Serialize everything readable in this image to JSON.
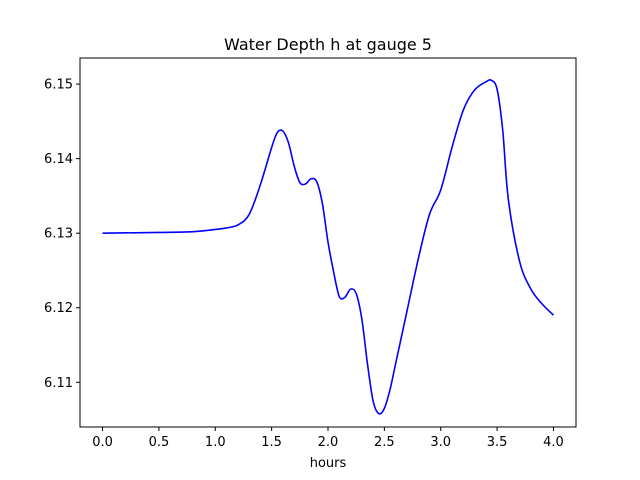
{
  "chart_data": {
    "type": "line",
    "title": "Water Depth h at gauge 5",
    "xlabel": "hours",
    "ylabel": "",
    "xlim": [
      -0.2,
      4.2
    ],
    "ylim": [
      6.104,
      6.1535
    ],
    "grid": false,
    "legend": "none",
    "x_ticks": [
      0.0,
      0.5,
      1.0,
      1.5,
      2.0,
      2.5,
      3.0,
      3.5,
      4.0
    ],
    "x_tick_labels": [
      "0.0",
      "0.5",
      "1.0",
      "1.5",
      "2.0",
      "2.5",
      "3.0",
      "3.5",
      "4.0"
    ],
    "y_ticks": [
      6.11,
      6.12,
      6.13,
      6.14,
      6.15
    ],
    "y_tick_labels": [
      "6.11",
      "6.12",
      "6.13",
      "6.14",
      "6.15"
    ],
    "series": [
      {
        "name": "",
        "color": "#0000ff",
        "x": [
          0.0,
          0.5,
          0.8,
          1.0,
          1.1,
          1.2,
          1.3,
          1.4,
          1.5,
          1.55,
          1.6,
          1.65,
          1.7,
          1.75,
          1.8,
          1.85,
          1.9,
          1.95,
          2.0,
          2.05,
          2.1,
          2.15,
          2.2,
          2.25,
          2.3,
          2.35,
          2.4,
          2.45,
          2.5,
          2.55,
          2.6,
          2.7,
          2.8,
          2.9,
          3.0,
          3.1,
          3.2,
          3.3,
          3.4,
          3.45,
          3.5,
          3.55,
          3.6,
          3.7,
          3.8,
          3.9,
          4.0
        ],
        "y": [
          6.13,
          6.1301,
          6.1302,
          6.1305,
          6.1307,
          6.1311,
          6.1325,
          6.1365,
          6.1415,
          6.1435,
          6.1437,
          6.1421,
          6.139,
          6.1368,
          6.1366,
          6.1373,
          6.1369,
          6.134,
          6.1288,
          6.1248,
          6.1215,
          6.1214,
          6.1225,
          6.1219,
          6.1185,
          6.1125,
          6.1075,
          6.1058,
          6.1065,
          6.109,
          6.1125,
          6.1195,
          6.1265,
          6.1325,
          6.1358,
          6.1415,
          6.1465,
          6.1492,
          6.1503,
          6.1505,
          6.1493,
          6.1438,
          6.1345,
          6.1262,
          6.1225,
          6.1205,
          6.119
        ]
      }
    ]
  }
}
